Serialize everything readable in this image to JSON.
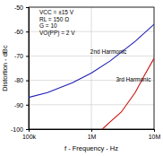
{
  "chart_data": {
    "type": "line",
    "x_label": "f - Frequency - Hz",
    "y_label": "Distortion - dBc",
    "annotations": [
      "VCC = ±15 V",
      "RL = 150 Ω",
      "G = 10",
      "VO(PP) = 2 V"
    ],
    "log": "x",
    "grid": true,
    "xlim": [
      100000,
      10000000
    ],
    "xticks": [
      {
        "value": 100000,
        "label": "100k"
      },
      {
        "value": 1000000,
        "label": "1M"
      },
      {
        "value": 10000000,
        "label": "10M"
      }
    ],
    "ylim": [
      -100,
      -50
    ],
    "yticks": [
      -100,
      -90,
      -80,
      -70,
      -60,
      -50
    ],
    "series": [
      {
        "name": "2nd Harmonic",
        "color": "#1f1fb4",
        "x": [
          100000,
          200000,
          500000,
          1000000,
          2000000,
          5000000,
          10000000
        ],
        "values": [
          -87,
          -85,
          -81,
          -77,
          -72,
          -64,
          -57
        ]
      },
      {
        "name": "3rd Harmonic",
        "color": "#cc1111",
        "x": [
          1500000,
          2000000,
          3000000,
          5000000,
          7000000,
          10000000
        ],
        "values": [
          -100,
          -97,
          -93,
          -85,
          -78,
          -71
        ]
      }
    ]
  }
}
